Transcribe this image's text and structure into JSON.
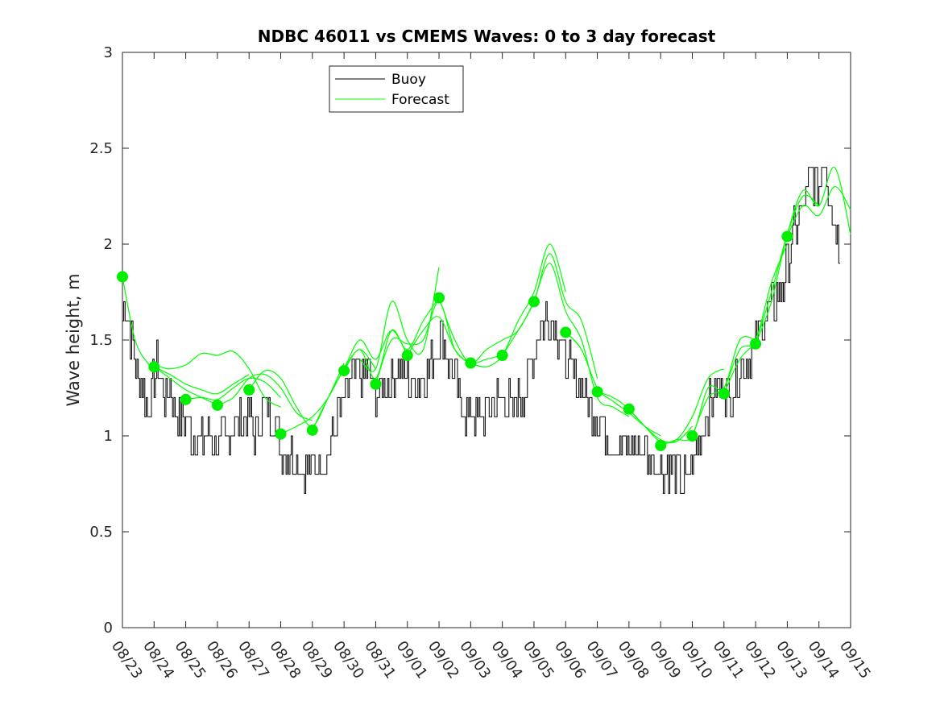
{
  "chart_data": {
    "type": "line",
    "title": "NDBC 46011 vs CMEMS Waves: 0 to 3 day forecast",
    "xlabel": "",
    "ylabel": "Wave height, m",
    "xlim_days": [
      0,
      23
    ],
    "ylim": [
      0,
      3
    ],
    "yticks": [
      "0",
      "0.5",
      "1",
      "1.5",
      "2",
      "2.5",
      "3"
    ],
    "yticks_values": [
      0,
      0.5,
      1,
      1.5,
      2,
      2.5,
      3
    ],
    "xticks": [
      "08/23",
      "08/24",
      "08/25",
      "08/26",
      "08/27",
      "08/28",
      "08/29",
      "08/30",
      "08/31",
      "09/01",
      "09/02",
      "09/03",
      "09/04",
      "09/05",
      "09/06",
      "09/07",
      "09/08",
      "09/09",
      "09/10",
      "09/11",
      "09/12",
      "09/13",
      "09/14",
      "09/15"
    ],
    "legend": {
      "placement": "top-center-left",
      "entries": [
        "Buoy",
        "Forecast"
      ]
    },
    "colors": {
      "buoy": "#000000",
      "forecast": "#00ff00",
      "markers": "#00ee00"
    },
    "buoy_key_points": [
      [
        0.0,
        1.6
      ],
      [
        0.1,
        1.7
      ],
      [
        0.25,
        1.5
      ],
      [
        0.4,
        1.4
      ],
      [
        0.5,
        1.3
      ],
      [
        0.7,
        1.2
      ],
      [
        0.8,
        1.1
      ],
      [
        1.0,
        1.3
      ],
      [
        1.1,
        1.4
      ],
      [
        1.3,
        1.2
      ],
      [
        1.5,
        1.3
      ],
      [
        1.6,
        1.2
      ],
      [
        1.8,
        1.1
      ],
      [
        2.0,
        1.1
      ],
      [
        2.2,
        1.0
      ],
      [
        2.5,
        0.95
      ],
      [
        2.8,
        1.0
      ],
      [
        3.0,
        0.95
      ],
      [
        3.3,
        1.0
      ],
      [
        3.6,
        1.1
      ],
      [
        3.8,
        1.05
      ],
      [
        4.0,
        1.1
      ],
      [
        4.2,
        1.0
      ],
      [
        4.5,
        1.15
      ],
      [
        4.8,
        1.1
      ],
      [
        5.0,
        0.95
      ],
      [
        5.3,
        0.9
      ],
      [
        5.6,
        0.85
      ],
      [
        6.0,
        0.85
      ],
      [
        6.3,
        0.85
      ],
      [
        6.5,
        0.9
      ],
      [
        6.8,
        1.1
      ],
      [
        7.0,
        1.2
      ],
      [
        7.2,
        1.3
      ],
      [
        7.5,
        1.35
      ],
      [
        7.8,
        1.3
      ],
      [
        8.0,
        1.2
      ],
      [
        8.2,
        1.25
      ],
      [
        8.5,
        1.3
      ],
      [
        8.8,
        1.35
      ],
      [
        9.0,
        1.3
      ],
      [
        9.2,
        1.25
      ],
      [
        9.5,
        1.3
      ],
      [
        9.8,
        1.4
      ],
      [
        10.0,
        1.5
      ],
      [
        10.1,
        1.55
      ],
      [
        10.3,
        1.4
      ],
      [
        10.5,
        1.3
      ],
      [
        10.7,
        1.15
      ],
      [
        11.0,
        1.1
      ],
      [
        11.3,
        1.1
      ],
      [
        11.6,
        1.15
      ],
      [
        12.0,
        1.2
      ],
      [
        12.3,
        1.15
      ],
      [
        12.6,
        1.2
      ],
      [
        13.0,
        1.4
      ],
      [
        13.2,
        1.55
      ],
      [
        13.4,
        1.65
      ],
      [
        13.6,
        1.6
      ],
      [
        13.8,
        1.5
      ],
      [
        14.0,
        1.4
      ],
      [
        14.3,
        1.3
      ],
      [
        14.6,
        1.2
      ],
      [
        15.0,
        1.1
      ],
      [
        15.3,
        1.0
      ],
      [
        15.6,
        0.95
      ],
      [
        16.0,
        0.95
      ],
      [
        16.3,
        0.95
      ],
      [
        16.6,
        0.9
      ],
      [
        17.0,
        0.85
      ],
      [
        17.3,
        0.85
      ],
      [
        17.6,
        0.8
      ],
      [
        17.8,
        0.75
      ],
      [
        18.0,
        0.85
      ],
      [
        18.2,
        1.0
      ],
      [
        18.4,
        1.1
      ],
      [
        18.6,
        1.2
      ],
      [
        19.0,
        1.25
      ],
      [
        19.2,
        1.2
      ],
      [
        19.4,
        1.3
      ],
      [
        19.7,
        1.4
      ],
      [
        20.0,
        1.5
      ],
      [
        20.3,
        1.6
      ],
      [
        20.6,
        1.7
      ],
      [
        20.9,
        1.8
      ],
      [
        21.1,
        2.0
      ],
      [
        21.3,
        2.1
      ],
      [
        21.5,
        2.2
      ],
      [
        21.8,
        2.35
      ],
      [
        22.0,
        2.3
      ],
      [
        22.15,
        2.5
      ],
      [
        22.3,
        2.3
      ],
      [
        22.5,
        2.1
      ],
      [
        22.7,
        1.95
      ]
    ],
    "forecast_series": [
      {
        "x": [
          0,
          0.4,
          0.8,
          1.0,
          1.5,
          2,
          2.5,
          3
        ],
        "y": [
          1.83,
          1.5,
          1.38,
          1.36,
          1.3,
          1.24,
          1.2,
          1.16
        ]
      },
      {
        "x": [
          1,
          1.5,
          2,
          2.5,
          3,
          3.5,
          4
        ],
        "y": [
          1.36,
          1.32,
          1.27,
          1.24,
          1.22,
          1.27,
          1.32
        ]
      },
      {
        "x": [
          1.2,
          1.5,
          2,
          2.5,
          3,
          3.5,
          4,
          4.5,
          5
        ],
        "y": [
          1.36,
          1.35,
          1.37,
          1.43,
          1.42,
          1.44,
          1.35,
          1.2,
          1.15
        ]
      },
      {
        "x": [
          2,
          2.5,
          3,
          3.5,
          4,
          4.5,
          5
        ],
        "y": [
          1.19,
          1.2,
          1.19,
          1.25,
          1.3,
          1.28,
          1.2
        ]
      },
      {
        "x": [
          3,
          3.5,
          4,
          4.5,
          5,
          5.5,
          6
        ],
        "y": [
          1.16,
          1.2,
          1.3,
          1.32,
          1.25,
          1.12,
          1.08
        ]
      },
      {
        "x": [
          4,
          4.5,
          5,
          5.5,
          6,
          6.5,
          7
        ],
        "y": [
          1.24,
          1.34,
          1.3,
          1.15,
          1.05,
          1.2,
          1.38
        ]
      },
      {
        "x": [
          5,
          5.5,
          6,
          6.5,
          7,
          7.5,
          8
        ],
        "y": [
          1.01,
          1.05,
          1.1,
          1.2,
          1.35,
          1.45,
          1.35
        ]
      },
      {
        "x": [
          6,
          6.5,
          7,
          7.5,
          8,
          8.5,
          9
        ],
        "y": [
          1.03,
          1.2,
          1.35,
          1.5,
          1.4,
          1.55,
          1.42
        ]
      },
      {
        "x": [
          7,
          7.5,
          8,
          8.5,
          9,
          9.5,
          10
        ],
        "y": [
          1.34,
          1.45,
          1.3,
          1.55,
          1.45,
          1.6,
          1.72
        ]
      },
      {
        "x": [
          7.5,
          8,
          8.5,
          9,
          9.5,
          10
        ],
        "y": [
          1.4,
          1.35,
          1.7,
          1.5,
          1.45,
          1.88
        ]
      },
      {
        "x": [
          8,
          8.5,
          9,
          9.5,
          10,
          10.5,
          11
        ],
        "y": [
          1.27,
          1.5,
          1.48,
          1.5,
          1.7,
          1.45,
          1.38
        ]
      },
      {
        "x": [
          9,
          9.5,
          10,
          10.5,
          11,
          11.5,
          12
        ],
        "y": [
          1.42,
          1.55,
          1.62,
          1.45,
          1.38,
          1.4,
          1.42
        ]
      },
      {
        "x": [
          10,
          10.5,
          11,
          11.5,
          12,
          12.5,
          13
        ],
        "y": [
          1.72,
          1.5,
          1.38,
          1.45,
          1.5,
          1.55,
          1.7
        ]
      },
      {
        "x": [
          11,
          11.5,
          12,
          12.5,
          13,
          13.5,
          14
        ],
        "y": [
          1.38,
          1.36,
          1.42,
          1.6,
          1.75,
          2.0,
          1.75
        ]
      },
      {
        "x": [
          12,
          12.5,
          13,
          13.5,
          14,
          14.5,
          15
        ],
        "y": [
          1.42,
          1.55,
          1.7,
          1.95,
          1.7,
          1.6,
          1.3
        ]
      },
      {
        "x": [
          13,
          13.5,
          14,
          14.5,
          15,
          15.5,
          16
        ],
        "y": [
          1.7,
          1.9,
          1.65,
          1.5,
          1.2,
          1.15,
          1.1
        ]
      },
      {
        "x": [
          14,
          14.5,
          15,
          15.5,
          16,
          16.5,
          17
        ],
        "y": [
          1.54,
          1.45,
          1.25,
          1.18,
          1.12,
          1.05,
          1.0
        ]
      },
      {
        "x": [
          15,
          15.5,
          16,
          16.5,
          17,
          17.5,
          18
        ],
        "y": [
          1.23,
          1.2,
          1.14,
          1.05,
          0.98,
          0.97,
          1.05
        ]
      },
      {
        "x": [
          16,
          16.5,
          17,
          17.5,
          18,
          18.5,
          19
        ],
        "y": [
          1.14,
          1.05,
          0.97,
          0.98,
          1.1,
          1.3,
          1.35
        ]
      },
      {
        "x": [
          17,
          17.5,
          18,
          18.5,
          19,
          19.5,
          20
        ],
        "y": [
          0.95,
          0.98,
          1.0,
          1.25,
          1.25,
          1.5,
          1.5
        ]
      },
      {
        "x": [
          18,
          18.5,
          19,
          19.5,
          20,
          20.5,
          21
        ],
        "y": [
          1.0,
          1.2,
          1.25,
          1.45,
          1.5,
          1.8,
          2.0
        ]
      },
      {
        "x": [
          19,
          19.5,
          20,
          20.5,
          21,
          21.5,
          22
        ],
        "y": [
          1.22,
          1.4,
          1.5,
          1.75,
          2.05,
          2.25,
          2.2
        ]
      },
      {
        "x": [
          20,
          20.5,
          21,
          21.5,
          22,
          22.5,
          23
        ],
        "y": [
          1.48,
          1.7,
          2.05,
          2.28,
          2.2,
          2.4,
          2.05
        ]
      },
      {
        "x": [
          21,
          21.5,
          22,
          22.5,
          23
        ],
        "y": [
          2.04,
          2.2,
          2.15,
          2.3,
          2.18
        ]
      }
    ],
    "forecast_markers": {
      "x": [
        0,
        1,
        2,
        3,
        4,
        5,
        6,
        7,
        8,
        9,
        10,
        11,
        12,
        13,
        14,
        15,
        16,
        17,
        18,
        19,
        20,
        21
      ],
      "y": [
        1.83,
        1.36,
        1.19,
        1.16,
        1.24,
        1.01,
        1.03,
        1.34,
        1.27,
        1.42,
        1.72,
        1.38,
        1.42,
        1.7,
        1.54,
        1.23,
        1.14,
        0.95,
        1.0,
        1.22,
        1.48,
        2.04
      ]
    }
  }
}
